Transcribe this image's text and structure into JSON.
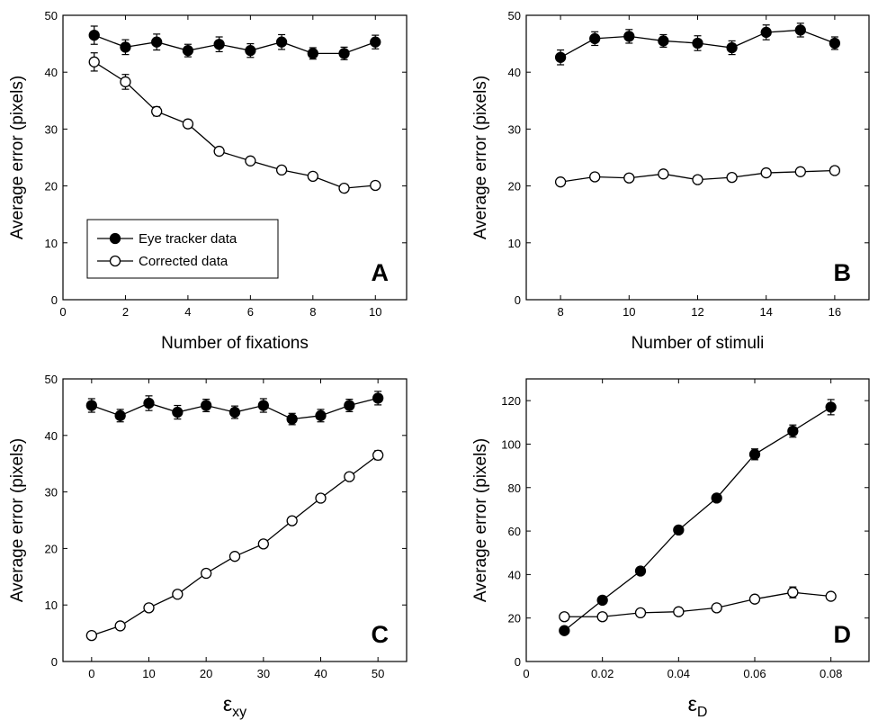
{
  "legend": {
    "entries": [
      "Eye tracker data",
      "Corrected data"
    ]
  },
  "chart_data": [
    {
      "panel": "A",
      "type": "line",
      "xlabel": "Number of fixations",
      "ylabel": "Average error (pixels)",
      "xlim": [
        0,
        11
      ],
      "ylim": [
        0,
        50
      ],
      "xticks": [
        0,
        2,
        4,
        6,
        8,
        10
      ],
      "yticks": [
        0,
        10,
        20,
        30,
        40,
        50
      ],
      "legend": "inside bottom-left",
      "series": [
        {
          "name": "Eye tracker data",
          "marker": "filled",
          "x": [
            1,
            2,
            3,
            4,
            5,
            6,
            7,
            8,
            9,
            10
          ],
          "y": [
            46.5,
            44.4,
            45.3,
            43.8,
            44.9,
            43.8,
            45.3,
            43.3,
            43.3,
            45.3
          ],
          "err": [
            1.6,
            1.3,
            1.4,
            1.1,
            1.3,
            1.2,
            1.3,
            1.0,
            1.1,
            1.2
          ]
        },
        {
          "name": "Corrected data",
          "marker": "open",
          "x": [
            1,
            2,
            3,
            4,
            5,
            6,
            7,
            8,
            9,
            10
          ],
          "y": [
            41.8,
            38.3,
            33.1,
            30.9,
            26.1,
            24.4,
            22.8,
            21.7,
            19.6,
            20.1
          ],
          "err": [
            1.6,
            1.3,
            0.8,
            0.7,
            0.4,
            0.4,
            0.3,
            0.3,
            0.3,
            0.3
          ]
        }
      ]
    },
    {
      "panel": "B",
      "type": "line",
      "xlabel": "Number of stimuli",
      "ylabel": "Average error (pixels)",
      "xlim": [
        7,
        17
      ],
      "ylim": [
        0,
        50
      ],
      "xticks": [
        8,
        10,
        12,
        14,
        16
      ],
      "yticks": [
        0,
        10,
        20,
        30,
        40,
        50
      ],
      "series": [
        {
          "name": "Eye tracker data",
          "marker": "filled",
          "x": [
            8,
            9,
            10,
            11,
            12,
            13,
            14,
            15,
            16
          ],
          "y": [
            42.6,
            45.9,
            46.3,
            45.5,
            45.1,
            44.3,
            47.0,
            47.4,
            45.1
          ],
          "err": [
            1.3,
            1.2,
            1.2,
            1.1,
            1.3,
            1.2,
            1.3,
            1.2,
            1.1
          ]
        },
        {
          "name": "Corrected data",
          "marker": "open",
          "x": [
            8,
            9,
            10,
            11,
            12,
            13,
            14,
            15,
            16
          ],
          "y": [
            20.7,
            21.6,
            21.4,
            22.1,
            21.1,
            21.5,
            22.3,
            22.5,
            22.7
          ],
          "err": [
            0.3,
            0.3,
            0.3,
            0.3,
            0.3,
            0.3,
            0.3,
            0.3,
            0.3
          ]
        }
      ]
    },
    {
      "panel": "C",
      "type": "line",
      "xlabel": "ε",
      "xlabel_sub": "xy",
      "ylabel": "Average error (pixels)",
      "xlim": [
        -5,
        55
      ],
      "ylim": [
        0,
        50
      ],
      "xticks": [
        0,
        10,
        20,
        30,
        40,
        50
      ],
      "yticks": [
        0,
        10,
        20,
        30,
        40,
        50
      ],
      "series": [
        {
          "name": "Eye tracker data",
          "marker": "filled",
          "x": [
            0,
            5,
            10,
            15,
            20,
            25,
            30,
            35,
            40,
            45,
            50
          ],
          "y": [
            45.3,
            43.5,
            45.7,
            44.1,
            45.3,
            44.1,
            45.3,
            42.9,
            43.5,
            45.3,
            46.6
          ],
          "err": [
            1.2,
            1.1,
            1.3,
            1.2,
            1.1,
            1.1,
            1.2,
            1.0,
            1.1,
            1.1,
            1.2
          ]
        },
        {
          "name": "Corrected data",
          "marker": "open",
          "x": [
            0,
            5,
            10,
            15,
            20,
            25,
            30,
            35,
            40,
            45,
            50
          ],
          "y": [
            4.6,
            6.3,
            9.5,
            11.9,
            15.6,
            18.6,
            20.8,
            24.9,
            28.9,
            32.7,
            36.5
          ],
          "err": [
            0.2,
            0.2,
            0.2,
            0.2,
            0.2,
            0.2,
            0.2,
            0.2,
            0.3,
            0.3,
            0.8
          ]
        }
      ]
    },
    {
      "panel": "D",
      "type": "line",
      "xlabel": "ε",
      "xlabel_sub": "D",
      "ylabel": "Average error (pixels)",
      "xlim": [
        0,
        0.09
      ],
      "ylim": [
        0,
        130
      ],
      "xticks": [
        0,
        0.02,
        0.04,
        0.06,
        0.08
      ],
      "yticks": [
        0,
        20,
        40,
        60,
        80,
        100,
        120
      ],
      "series": [
        {
          "name": "Eye tracker data",
          "marker": "filled",
          "x": [
            0.01,
            0.02,
            0.03,
            0.04,
            0.05,
            0.06,
            0.07,
            0.08
          ],
          "y": [
            14.2,
            28.2,
            41.6,
            60.5,
            75.2,
            95.3,
            106.0,
            117.0
          ],
          "err": [
            0.5,
            0.8,
            0.8,
            0.8,
            0.9,
            2.5,
            2.8,
            3.5
          ]
        },
        {
          "name": "Corrected data",
          "marker": "open",
          "x": [
            0.01,
            0.02,
            0.03,
            0.04,
            0.05,
            0.06,
            0.07,
            0.08
          ],
          "y": [
            20.6,
            20.6,
            22.4,
            22.9,
            24.7,
            28.7,
            31.8,
            30.0
          ],
          "err": [
            0.5,
            0.5,
            0.5,
            0.5,
            0.5,
            0.5,
            2.5,
            0.5
          ]
        }
      ]
    }
  ]
}
